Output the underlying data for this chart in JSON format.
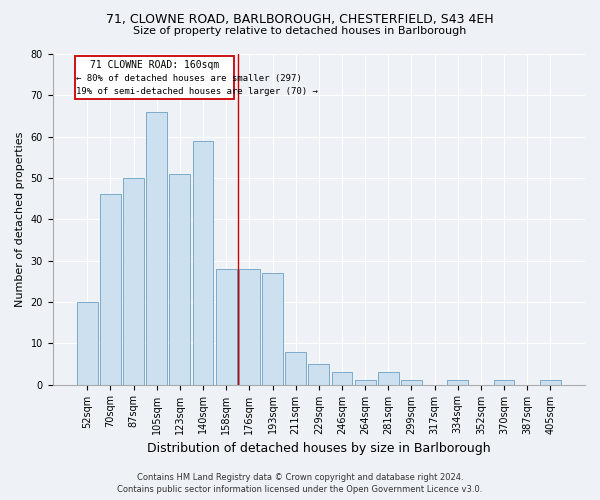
{
  "title_line1": "71, CLOWNE ROAD, BARLBOROUGH, CHESTERFIELD, S43 4EH",
  "title_line2": "Size of property relative to detached houses in Barlborough",
  "xlabel": "Distribution of detached houses by size in Barlborough",
  "ylabel": "Number of detached properties",
  "categories": [
    "52sqm",
    "70sqm",
    "87sqm",
    "105sqm",
    "123sqm",
    "140sqm",
    "158sqm",
    "176sqm",
    "193sqm",
    "211sqm",
    "229sqm",
    "246sqm",
    "264sqm",
    "281sqm",
    "299sqm",
    "317sqm",
    "334sqm",
    "352sqm",
    "370sqm",
    "387sqm",
    "405sqm"
  ],
  "values": [
    20,
    46,
    50,
    66,
    51,
    59,
    28,
    28,
    27,
    8,
    5,
    3,
    1,
    3,
    1,
    0,
    1,
    0,
    1,
    0,
    1
  ],
  "bar_color": "#cce0f0",
  "bar_edge_color": "#7aaac8",
  "vline_x": 6.5,
  "vline_color": "#cc0000",
  "annotation_title": "71 CLOWNE ROAD: 160sqm",
  "annotation_line1": "← 80% of detached houses are smaller (297)",
  "annotation_line2": "19% of semi-detached houses are larger (70) →",
  "annotation_box_facecolor": "#ffffff",
  "annotation_box_edgecolor": "#cc0000",
  "ylim": [
    0,
    80
  ],
  "yticks": [
    0,
    10,
    20,
    30,
    40,
    50,
    60,
    70,
    80
  ],
  "footer_line1": "Contains HM Land Registry data © Crown copyright and database right 2024.",
  "footer_line2": "Contains public sector information licensed under the Open Government Licence v3.0.",
  "bg_color": "#eef2f7",
  "title1_fontsize": 9,
  "title2_fontsize": 8,
  "axis_label_fontsize": 8,
  "tick_fontsize": 7,
  "footer_fontsize": 6
}
